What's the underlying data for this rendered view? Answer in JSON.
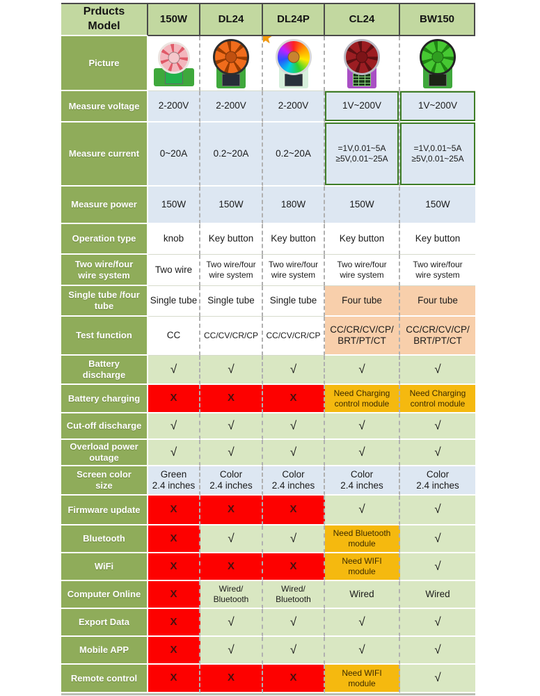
{
  "header": {
    "corner_label": "Prducts\nModel",
    "models": [
      "150W",
      "DL24",
      "DL24P",
      "CL24",
      "BW150"
    ]
  },
  "picture": {
    "label": "Picture",
    "products": [
      {
        "id": "150w",
        "pcb": "#3fa83c",
        "blade_a": "#f3b6bd",
        "blade_b": "#e05a68",
        "ring": "#ece4e0",
        "hub": "#f4c7cb",
        "screen": "#23b24b",
        "star": false,
        "keypad": false,
        "wide": true,
        "rgb": false
      },
      {
        "id": "dl24",
        "pcb": "#3fa83c",
        "blade_a": "#f06c1c",
        "blade_b": "#9a3c00",
        "ring": "#2e2e2e",
        "hub": "#c05010",
        "screen": "#262c38",
        "star": false,
        "keypad": false,
        "wide": false,
        "rgb": false
      },
      {
        "id": "dl24p",
        "pcb": "#d6efdc",
        "blade_a": "",
        "blade_b": "",
        "ring": "#d8d8d8",
        "hub": "#c98330",
        "screen": "#28323c",
        "star": true,
        "keypad": false,
        "wide": false,
        "rgb": true
      },
      {
        "id": "cl24",
        "pcb": "#a94fc4",
        "blade_a": "#9c1d22",
        "blade_b": "#5e1013",
        "ring": "#b8b8c2",
        "hub": "#7d1418",
        "screen": "",
        "star": false,
        "keypad": true,
        "wide": false,
        "rgb": false
      },
      {
        "id": "bw150",
        "pcb": "#3fa83c",
        "blade_a": "#46c832",
        "blade_b": "#1e8412",
        "ring": "#242424",
        "hub": "#2f9e20",
        "screen": "#1c2416",
        "star": false,
        "keypad": false,
        "wide": false,
        "rgb": false
      }
    ]
  },
  "marks": {
    "check": "√",
    "cross": "X"
  },
  "icons": {
    "star": "★"
  },
  "rows": [
    {
      "label": "Measure voltage",
      "cells": [
        {
          "t": "2-200V",
          "bg": "blue"
        },
        {
          "t": "2-200V",
          "bg": "blue"
        },
        {
          "t": "2-200V",
          "bg": "blue"
        },
        {
          "t": "1V~200V",
          "bg": "blue",
          "flag": true
        },
        {
          "t": "1V~200V",
          "bg": "blue",
          "flag": true
        }
      ]
    },
    {
      "label": "Measure current",
      "cells": [
        {
          "t": "0~20A",
          "bg": "blue"
        },
        {
          "t": "0.2~20A",
          "bg": "blue"
        },
        {
          "t": "0.2~20A",
          "bg": "blue"
        },
        {
          "t": "=1V,0.01~5A\n≥5V,0.01~25A",
          "bg": "blue",
          "flag": true,
          "small": true
        },
        {
          "t": "=1V,0.01~5A\n≥5V,0.01~25A",
          "bg": "blue",
          "flag": true,
          "small": true
        }
      ]
    },
    {
      "label": "Measure power",
      "cells": [
        {
          "t": "150W",
          "bg": "blue"
        },
        {
          "t": "150W",
          "bg": "blue"
        },
        {
          "t": "180W",
          "bg": "blue"
        },
        {
          "t": "150W",
          "bg": "blue"
        },
        {
          "t": "150W",
          "bg": "blue"
        }
      ]
    },
    {
      "label": "Operation type",
      "cells": [
        {
          "t": "knob",
          "bg": "white"
        },
        {
          "t": "Key button",
          "bg": "white"
        },
        {
          "t": "Key button",
          "bg": "white"
        },
        {
          "t": "Key button",
          "bg": "white"
        },
        {
          "t": "Key button",
          "bg": "white"
        }
      ]
    },
    {
      "label": "Two wire/four\nwire system",
      "cells": [
        {
          "t": "Two wire",
          "bg": "white"
        },
        {
          "t": "Two wire/four\nwire system",
          "bg": "white",
          "small": true
        },
        {
          "t": "Two wire/four\nwire system",
          "bg": "white",
          "small": true
        },
        {
          "t": "Two wire/four\nwire system",
          "bg": "white",
          "small": true
        },
        {
          "t": "Two wire/four\nwire system",
          "bg": "white",
          "small": true
        }
      ]
    },
    {
      "label": "Single tube /four\ntube",
      "cells": [
        {
          "t": "Single tube",
          "bg": "white"
        },
        {
          "t": "Single tube",
          "bg": "white"
        },
        {
          "t": "Single tube",
          "bg": "white"
        },
        {
          "t": "Four tube",
          "bg": "peach"
        },
        {
          "t": "Four tube",
          "bg": "peach"
        }
      ]
    },
    {
      "label": "Test function",
      "cells": [
        {
          "t": "CC",
          "bg": "white"
        },
        {
          "t": "CC/CV/CR/CP",
          "bg": "white",
          "small": true
        },
        {
          "t": "CC/CV/CR/CP",
          "bg": "white",
          "small": true
        },
        {
          "t": "CC/CR/CV/CP/\nBRT/PT/CT",
          "bg": "peach"
        },
        {
          "t": "CC/CR/CV/CP/\nBRT/PT/CT",
          "bg": "peach"
        }
      ]
    },
    {
      "label": "Battery\ndischarge",
      "cells": [
        {
          "mark": "check",
          "bg": "green"
        },
        {
          "mark": "check",
          "bg": "green"
        },
        {
          "mark": "check",
          "bg": "green"
        },
        {
          "mark": "check",
          "bg": "green"
        },
        {
          "mark": "check",
          "bg": "green"
        }
      ]
    },
    {
      "label": "Battery charging",
      "cells": [
        {
          "mark": "cross",
          "bg": "red"
        },
        {
          "mark": "cross",
          "bg": "red"
        },
        {
          "mark": "cross",
          "bg": "red"
        },
        {
          "t": "Need Charging\ncontrol module",
          "bg": "yellow",
          "small": true
        },
        {
          "t": "Need Charging\ncontrol module",
          "bg": "yellow",
          "small": true
        }
      ]
    },
    {
      "label": "Cut-off discharge",
      "cells": [
        {
          "mark": "check",
          "bg": "green"
        },
        {
          "mark": "check",
          "bg": "green"
        },
        {
          "mark": "check",
          "bg": "green"
        },
        {
          "mark": "check",
          "bg": "green"
        },
        {
          "mark": "check",
          "bg": "green"
        }
      ]
    },
    {
      "label": "Overload power\noutage",
      "cells": [
        {
          "mark": "check",
          "bg": "green"
        },
        {
          "mark": "check",
          "bg": "green"
        },
        {
          "mark": "check",
          "bg": "green"
        },
        {
          "mark": "check",
          "bg": "green"
        },
        {
          "mark": "check",
          "bg": "green"
        }
      ]
    },
    {
      "label": "Screen color\nsize",
      "cells": [
        {
          "t": "Green\n2.4 inches",
          "bg": "blue"
        },
        {
          "t": "Color\n2.4 inches",
          "bg": "blue"
        },
        {
          "t": "Color\n2.4 inches",
          "bg": "blue"
        },
        {
          "t": "Color\n2.4 inches",
          "bg": "blue"
        },
        {
          "t": "Color\n2.4 inches",
          "bg": "blue"
        }
      ]
    },
    {
      "label": "Firmware update",
      "cells": [
        {
          "mark": "cross",
          "bg": "red"
        },
        {
          "mark": "cross",
          "bg": "red"
        },
        {
          "mark": "cross",
          "bg": "red"
        },
        {
          "mark": "check",
          "bg": "green"
        },
        {
          "mark": "check",
          "bg": "green"
        }
      ]
    },
    {
      "label": "Bluetooth",
      "cells": [
        {
          "mark": "cross",
          "bg": "red"
        },
        {
          "mark": "check",
          "bg": "green"
        },
        {
          "mark": "check",
          "bg": "green"
        },
        {
          "t": "Need Bluetooth\nmodule",
          "bg": "yellow",
          "small": true
        },
        {
          "mark": "check",
          "bg": "green"
        }
      ]
    },
    {
      "label": "WiFi",
      "cells": [
        {
          "mark": "cross",
          "bg": "red"
        },
        {
          "mark": "cross",
          "bg": "red"
        },
        {
          "mark": "cross",
          "bg": "red"
        },
        {
          "t": "Need WIFI\nmodule",
          "bg": "yellow",
          "small": true
        },
        {
          "mark": "check",
          "bg": "green"
        }
      ]
    },
    {
      "label": "Computer Online",
      "cells": [
        {
          "mark": "cross",
          "bg": "red"
        },
        {
          "t": "Wired/\nBluetooth",
          "bg": "green",
          "small": true
        },
        {
          "t": "Wired/\nBluetooth",
          "bg": "green",
          "small": true
        },
        {
          "t": "Wired",
          "bg": "green"
        },
        {
          "t": "Wired",
          "bg": "green"
        }
      ]
    },
    {
      "label": "Export Data",
      "cells": [
        {
          "mark": "cross",
          "bg": "red"
        },
        {
          "mark": "check",
          "bg": "green"
        },
        {
          "mark": "check",
          "bg": "green"
        },
        {
          "mark": "check",
          "bg": "green"
        },
        {
          "mark": "check",
          "bg": "green"
        }
      ]
    },
    {
      "label": "Mobile APP",
      "cells": [
        {
          "mark": "cross",
          "bg": "red"
        },
        {
          "mark": "check",
          "bg": "green"
        },
        {
          "mark": "check",
          "bg": "green"
        },
        {
          "mark": "check",
          "bg": "green"
        },
        {
          "mark": "check",
          "bg": "green"
        }
      ]
    },
    {
      "label": "Remote control",
      "cells": [
        {
          "mark": "cross",
          "bg": "red"
        },
        {
          "mark": "cross",
          "bg": "red"
        },
        {
          "mark": "cross",
          "bg": "red"
        },
        {
          "t": "Need WIFI\nmodule",
          "bg": "yellow",
          "small": true
        },
        {
          "mark": "check",
          "bg": "green"
        }
      ]
    }
  ],
  "colors": {
    "olive": "#8fac5a",
    "headergreen": "#c2d8a0",
    "lightgreen": "#d9e7c2",
    "lightblue": "#dde7f2",
    "red": "#fd0100",
    "yellow": "#f5b90f",
    "peach": "#f8cfab",
    "flaggreen": "#3e7d27",
    "bottombar": "#b9bfb2"
  },
  "chart_data": {
    "type": "table",
    "title": "Prducts Model",
    "columns": [
      "150W",
      "DL24",
      "DL24P",
      "CL24",
      "BW150"
    ],
    "rows": [
      {
        "feature": "Measure voltage",
        "values": [
          "2-200V",
          "2-200V",
          "2-200V",
          "1V~200V",
          "1V~200V"
        ]
      },
      {
        "feature": "Measure current",
        "values": [
          "0~20A",
          "0.2~20A",
          "0.2~20A",
          "=1V,0.01~5A ≥5V,0.01~25A",
          "=1V,0.01~5A ≥5V,0.01~25A"
        ]
      },
      {
        "feature": "Measure power",
        "values": [
          "150W",
          "150W",
          "180W",
          "150W",
          "150W"
        ]
      },
      {
        "feature": "Operation type",
        "values": [
          "knob",
          "Key button",
          "Key button",
          "Key button",
          "Key button"
        ]
      },
      {
        "feature": "Two wire/four wire system",
        "values": [
          "Two wire",
          "Two wire/four wire system",
          "Two wire/four wire system",
          "Two wire/four wire system",
          "Two wire/four wire system"
        ]
      },
      {
        "feature": "Single tube /four tube",
        "values": [
          "Single tube",
          "Single tube",
          "Single tube",
          "Four tube",
          "Four tube"
        ]
      },
      {
        "feature": "Test function",
        "values": [
          "CC",
          "CC/CV/CR/CP",
          "CC/CV/CR/CP",
          "CC/CR/CV/CP/ BRT/PT/CT",
          "CC/CR/CV/CP/ BRT/PT/CT"
        ]
      },
      {
        "feature": "Battery discharge",
        "values": [
          "√",
          "√",
          "√",
          "√",
          "√"
        ]
      },
      {
        "feature": "Battery charging",
        "values": [
          "X",
          "X",
          "X",
          "Need Charging control module",
          "Need Charging control module"
        ]
      },
      {
        "feature": "Cut-off discharge",
        "values": [
          "√",
          "√",
          "√",
          "√",
          "√"
        ]
      },
      {
        "feature": "Overload power outage",
        "values": [
          "√",
          "√",
          "√",
          "√",
          "√"
        ]
      },
      {
        "feature": "Screen color size",
        "values": [
          "Green 2.4 inches",
          "Color 2.4 inches",
          "Color 2.4 inches",
          "Color 2.4 inches",
          "Color 2.4 inches"
        ]
      },
      {
        "feature": "Firmware update",
        "values": [
          "X",
          "X",
          "X",
          "√",
          "√"
        ]
      },
      {
        "feature": "Bluetooth",
        "values": [
          "X",
          "√",
          "√",
          "Need Bluetooth module",
          "√"
        ]
      },
      {
        "feature": "WiFi",
        "values": [
          "X",
          "X",
          "X",
          "Need WIFI module",
          "√"
        ]
      },
      {
        "feature": "Computer Online",
        "values": [
          "X",
          "Wired/ Bluetooth",
          "Wired/ Bluetooth",
          "Wired",
          "Wired"
        ]
      },
      {
        "feature": "Export Data",
        "values": [
          "X",
          "√",
          "√",
          "√",
          "√"
        ]
      },
      {
        "feature": "Mobile APP",
        "values": [
          "X",
          "√",
          "√",
          "√",
          "√"
        ]
      },
      {
        "feature": "Remote control",
        "values": [
          "X",
          "X",
          "X",
          "Need WIFI module",
          "√"
        ]
      }
    ]
  }
}
